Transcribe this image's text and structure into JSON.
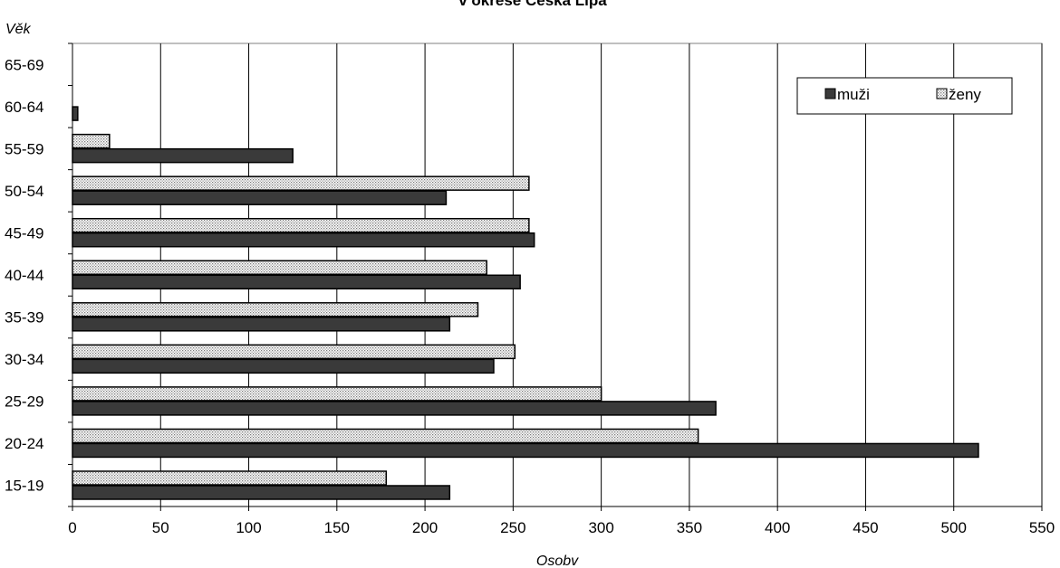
{
  "chart_data": {
    "type": "bar",
    "orientation": "horizontal",
    "title": "v okrese Česká Lípa",
    "xlabel": "Osobv",
    "ylabel": "Věk",
    "categories": [
      "15-19",
      "20-24",
      "25-29",
      "30-34",
      "35-39",
      "40-44",
      "45-49",
      "50-54",
      "55-59",
      "60-64",
      "65-69"
    ],
    "x_ticks": [
      "0",
      "50",
      "100",
      "150",
      "200",
      "250",
      "300",
      "350",
      "400",
      "450",
      "500",
      "550"
    ],
    "xlim": [
      0,
      550
    ],
    "grid": true,
    "legend_position": "top-right",
    "series": [
      {
        "name": "muži",
        "color": "#3a3a3a",
        "values": [
          214,
          514,
          365,
          239,
          214,
          254,
          262,
          212,
          125,
          3,
          0
        ]
      },
      {
        "name": "ženy",
        "color": "#c8c8c8",
        "values": [
          178,
          355,
          300,
          251,
          230,
          235,
          259,
          259,
          21,
          0,
          0
        ]
      }
    ]
  }
}
